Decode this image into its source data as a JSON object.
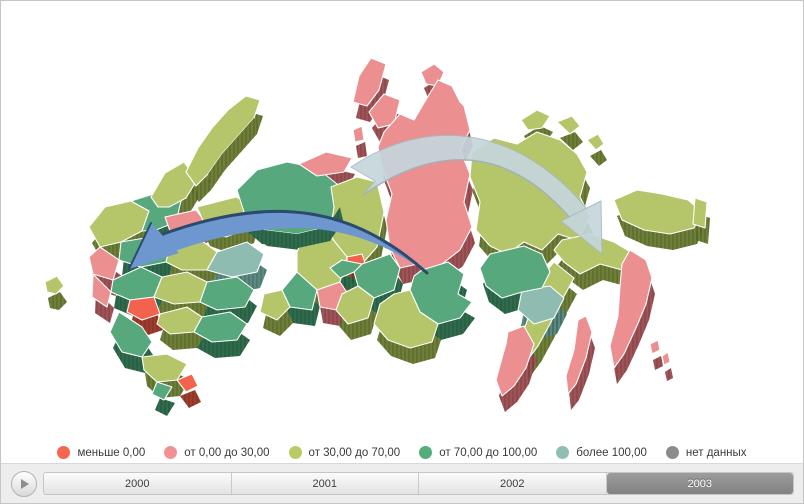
{
  "map": {
    "palette": {
      "negative": "#f2624d",
      "low": "#ec8f91",
      "mid": "#b5c56a",
      "high": "#57a87d",
      "very_high": "#8ebcb1",
      "no_data": "#8a8a8a"
    },
    "palette_dark": {
      "negative": "#a03c2e",
      "low": "#9f5356",
      "mid": "#6e7f38",
      "high": "#2f6b4d",
      "very_high": "#5a8a80",
      "no_data": "#5e5e5e"
    },
    "arrows": [
      {
        "name": "flow-arrow-west",
        "color": "#6f97cf",
        "edge": "#2c4a6e"
      },
      {
        "name": "flow-arrow-east",
        "color": "#c6d6dc",
        "edge": "#a7bac2"
      }
    ]
  },
  "legend": {
    "items": [
      {
        "label": "меньше 0,00",
        "color": "#f4664d",
        "key": "negative"
      },
      {
        "label": "от 0,00 до 30,00",
        "color": "#f09294",
        "key": "low"
      },
      {
        "label": "от 30,00 до 70,00",
        "color": "#bcca63",
        "key": "mid"
      },
      {
        "label": "от 70,00 до 100,00",
        "color": "#53ae7c",
        "key": "high"
      },
      {
        "label": "более 100,00",
        "color": "#8fbfb3",
        "key": "very_high"
      },
      {
        "label": "нет данных",
        "color": "#8c8c8c",
        "key": "no_data"
      }
    ]
  },
  "timeline": {
    "years": [
      "2000",
      "2001",
      "2002",
      "2003"
    ],
    "selected_year": "2003"
  }
}
